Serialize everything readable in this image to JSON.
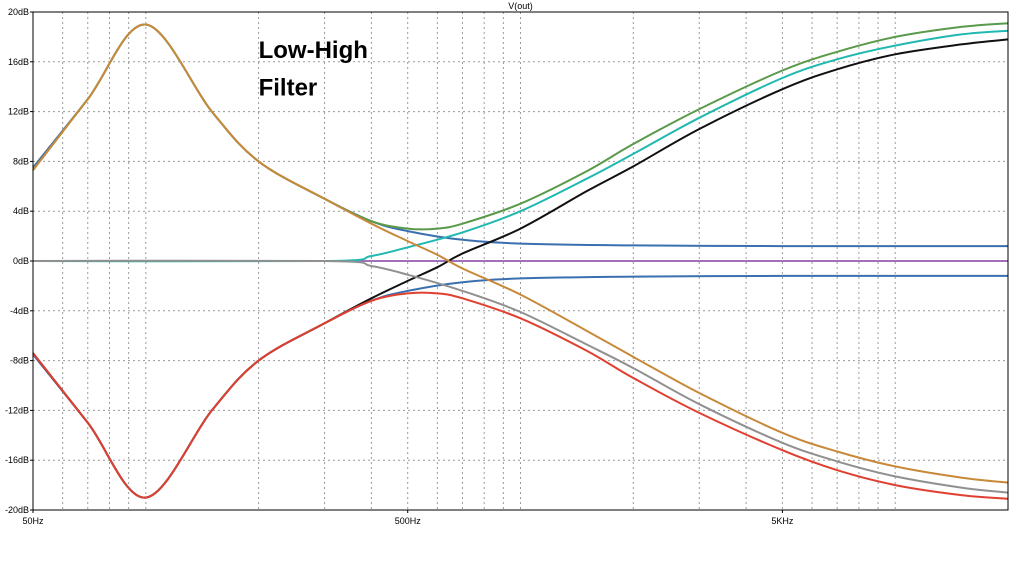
{
  "chart_data": {
    "type": "line",
    "title": "V(out)",
    "annotation": [
      "Low-High",
      "Filter"
    ],
    "x_scale": "log",
    "xlim": [
      50,
      20000
    ],
    "ylim": [
      -20,
      20
    ],
    "grid": true,
    "x_ticks": [
      {
        "value": 50,
        "label": "50Hz"
      },
      {
        "value": 500,
        "label": "500Hz"
      },
      {
        "value": 5000,
        "label": "5KHz"
      }
    ],
    "y_ticks": [
      {
        "value": 20,
        "label": "20dB"
      },
      {
        "value": 16,
        "label": "16dB"
      },
      {
        "value": 12,
        "label": "12dB"
      },
      {
        "value": 8,
        "label": "8dB"
      },
      {
        "value": 4,
        "label": "4dB"
      },
      {
        "value": 0,
        "label": "0dB"
      },
      {
        "value": -4,
        "label": "-4dB"
      },
      {
        "value": -8,
        "label": "-8dB"
      },
      {
        "value": -12,
        "label": "-12dB"
      },
      {
        "value": -16,
        "label": "-16dB"
      },
      {
        "value": -20,
        "label": "-20dB"
      }
    ],
    "series": [
      {
        "color": "#3a6fb0",
        "points": [
          [
            50,
            7.5
          ],
          [
            70,
            13
          ],
          [
            100,
            19
          ],
          [
            150,
            12
          ],
          [
            200,
            8
          ],
          [
            300,
            5
          ],
          [
            400,
            3.2
          ],
          [
            500,
            2.4
          ],
          [
            700,
            1.7
          ],
          [
            1000,
            1.4
          ],
          [
            2000,
            1.25
          ],
          [
            5000,
            1.2
          ],
          [
            10000,
            1.2
          ],
          [
            20000,
            1.2
          ]
        ]
      },
      {
        "color": "#3a6fb0",
        "points": [
          [
            50,
            -7.5
          ],
          [
            70,
            -13
          ],
          [
            100,
            -19
          ],
          [
            150,
            -12
          ],
          [
            200,
            -8
          ],
          [
            300,
            -5
          ],
          [
            400,
            -3.2
          ],
          [
            500,
            -2.4
          ],
          [
            700,
            -1.7
          ],
          [
            1000,
            -1.4
          ],
          [
            2000,
            -1.25
          ],
          [
            5000,
            -1.2
          ],
          [
            10000,
            -1.2
          ],
          [
            20000,
            -1.2
          ]
        ]
      },
      {
        "color": "#a070b8",
        "points": [
          [
            50,
            0
          ],
          [
            20000,
            0
          ]
        ]
      },
      {
        "color": "#5a9a4a",
        "points": [
          [
            50,
            7.3
          ],
          [
            70,
            13
          ],
          [
            100,
            19
          ],
          [
            150,
            12
          ],
          [
            200,
            8
          ],
          [
            300,
            5
          ],
          [
            400,
            3.2
          ],
          [
            500,
            2.6
          ],
          [
            600,
            2.6
          ],
          [
            700,
            3
          ],
          [
            1000,
            4.6
          ],
          [
            1500,
            7.2
          ],
          [
            2000,
            9.4
          ],
          [
            3000,
            12.2
          ],
          [
            5000,
            15.3
          ],
          [
            7000,
            16.8
          ],
          [
            10000,
            18
          ],
          [
            15000,
            18.8
          ],
          [
            20000,
            19.1
          ]
        ]
      },
      {
        "color": "#20b8b0",
        "points": [
          [
            50,
            0
          ],
          [
            300,
            0
          ],
          [
            400,
            0.4
          ],
          [
            500,
            1.1
          ],
          [
            700,
            2.3
          ],
          [
            1000,
            4
          ],
          [
            1500,
            6.6
          ],
          [
            2000,
            8.6
          ],
          [
            3000,
            11.5
          ],
          [
            5000,
            14.7
          ],
          [
            7000,
            16.2
          ],
          [
            10000,
            17.3
          ],
          [
            15000,
            18.2
          ],
          [
            20000,
            18.5
          ]
        ]
      },
      {
        "color": "#111111",
        "points": [
          [
            50,
            -7.4
          ],
          [
            70,
            -13
          ],
          [
            100,
            -19
          ],
          [
            150,
            -12
          ],
          [
            200,
            -8
          ],
          [
            300,
            -5
          ],
          [
            400,
            -3
          ],
          [
            500,
            -1.6
          ],
          [
            600,
            -0.5
          ],
          [
            700,
            0.6
          ],
          [
            1000,
            2.6
          ],
          [
            1500,
            5.6
          ],
          [
            2000,
            7.6
          ],
          [
            3000,
            10.6
          ],
          [
            5000,
            13.8
          ],
          [
            7000,
            15.4
          ],
          [
            10000,
            16.6
          ],
          [
            15000,
            17.4
          ],
          [
            20000,
            17.8
          ]
        ]
      },
      {
        "color": "#c8893a",
        "points": [
          [
            50,
            7.3
          ],
          [
            70,
            13
          ],
          [
            100,
            19
          ],
          [
            150,
            12
          ],
          [
            200,
            8
          ],
          [
            300,
            5
          ],
          [
            400,
            3
          ],
          [
            500,
            1.6
          ],
          [
            600,
            0.5
          ],
          [
            700,
            -0.6
          ],
          [
            1000,
            -2.7
          ],
          [
            1500,
            -5.6
          ],
          [
            2000,
            -7.7
          ],
          [
            3000,
            -10.6
          ],
          [
            5000,
            -13.8
          ],
          [
            7000,
            -15.3
          ],
          [
            10000,
            -16.5
          ],
          [
            15000,
            -17.4
          ],
          [
            20000,
            -17.8
          ]
        ]
      },
      {
        "color": "#909090",
        "points": [
          [
            50,
            0
          ],
          [
            300,
            0
          ],
          [
            400,
            -0.4
          ],
          [
            500,
            -1.1
          ],
          [
            700,
            -2.4
          ],
          [
            1000,
            -4.1
          ],
          [
            1500,
            -6.7
          ],
          [
            2000,
            -8.6
          ],
          [
            3000,
            -11.5
          ],
          [
            5000,
            -14.6
          ],
          [
            7000,
            -16.1
          ],
          [
            10000,
            -17.3
          ],
          [
            15000,
            -18.2
          ],
          [
            20000,
            -18.6
          ]
        ]
      },
      {
        "color": "#e04030",
        "points": [
          [
            50,
            -7.4
          ],
          [
            70,
            -13
          ],
          [
            100,
            -19
          ],
          [
            150,
            -12
          ],
          [
            200,
            -8
          ],
          [
            300,
            -5
          ],
          [
            400,
            -3.2
          ],
          [
            500,
            -2.6
          ],
          [
            600,
            -2.6
          ],
          [
            700,
            -3
          ],
          [
            1000,
            -4.6
          ],
          [
            1500,
            -7.2
          ],
          [
            2000,
            -9.4
          ],
          [
            3000,
            -12.2
          ],
          [
            5000,
            -15.2
          ],
          [
            7000,
            -16.8
          ],
          [
            10000,
            -18
          ],
          [
            15000,
            -18.8
          ],
          [
            20000,
            -19.1
          ]
        ]
      }
    ]
  }
}
